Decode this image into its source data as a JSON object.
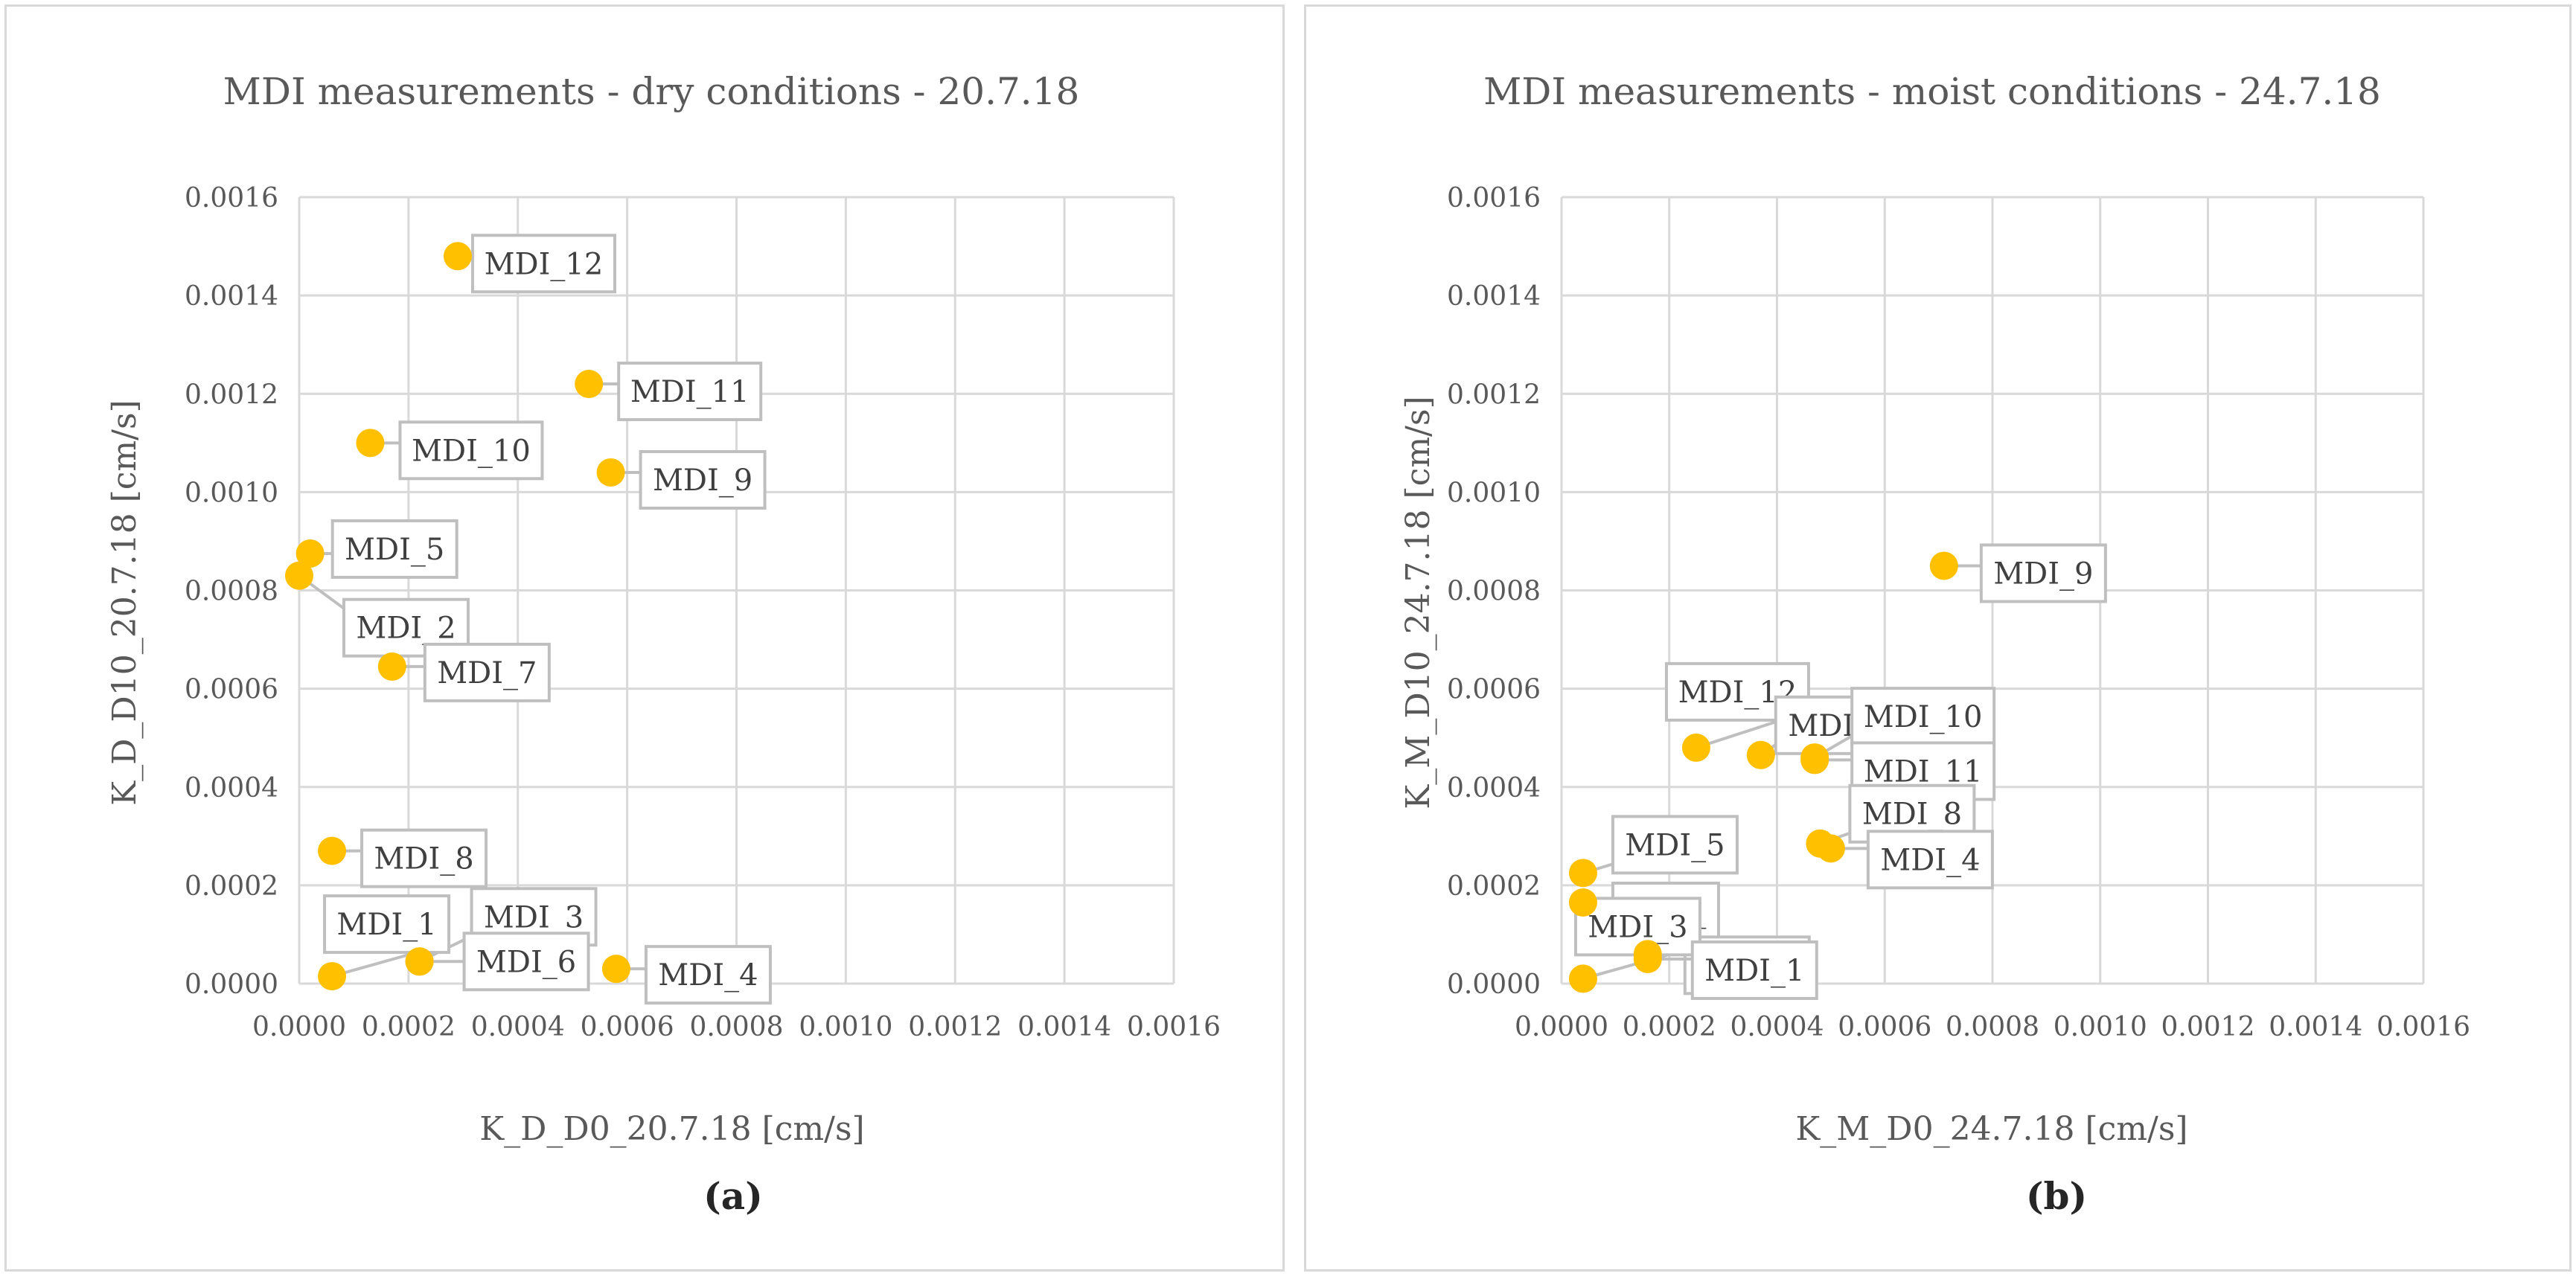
{
  "figure": {
    "captions": [
      "(a)",
      "(b)"
    ]
  },
  "chart_data": [
    {
      "type": "scatter",
      "title": "MDI measurements - dry conditions - 20.7.18",
      "xlabel": "K_D_D0_20.7.18 [cm/s]",
      "ylabel": "K_D_D10_20.7.18 [cm/s]",
      "xlim": [
        0,
        0.0016
      ],
      "ylim": [
        0,
        0.0016
      ],
      "xticks": [
        "0.0000",
        "0.0002",
        "0.0004",
        "0.0006",
        "0.0008",
        "0.0010",
        "0.0012",
        "0.0014",
        "0.0016"
      ],
      "yticks": [
        "0.0000",
        "0.0002",
        "0.0004",
        "0.0006",
        "0.0008",
        "0.0010",
        "0.0012",
        "0.0014",
        "0.0016"
      ],
      "grid": true,
      "legend": "none",
      "marker_color": "#FFC000",
      "points": [
        {
          "label": "MDI_12",
          "x": 0.00029,
          "y": 0.00148
        },
        {
          "label": "MDI_11",
          "x": 0.00053,
          "y": 0.00122
        },
        {
          "label": "MDI_10",
          "x": 0.00013,
          "y": 0.0011
        },
        {
          "label": "MDI_9",
          "x": 0.00057,
          "y": 0.00104
        },
        {
          "label": "MDI_5",
          "x": 2e-05,
          "y": 0.000875
        },
        {
          "label": "MDI_2",
          "x": 0.0,
          "y": 0.00083
        },
        {
          "label": "MDI_7",
          "x": 0.00017,
          "y": 0.000645
        },
        {
          "label": "MDI_8",
          "x": 6e-05,
          "y": 0.00027
        },
        {
          "label": "MDI_3",
          "x": 0.00022,
          "y": 4.5e-05
        },
        {
          "label": "MDI_1",
          "x": 6e-05,
          "y": 1.5e-05
        },
        {
          "label": "MDI_6",
          "x": 0.00022,
          "y": 4.5e-05
        },
        {
          "label": "MDI_4",
          "x": 0.00058,
          "y": 3e-05
        }
      ]
    },
    {
      "type": "scatter",
      "title": "MDI measurements - moist conditions - 24.7.18",
      "xlabel": "K_M_D0_24.7.18 [cm/s]",
      "ylabel": "K_M_D10_24.7.18 [cm/s]",
      "xlim": [
        0,
        0.0016
      ],
      "ylim": [
        0,
        0.0016
      ],
      "xticks": [
        "0.0000",
        "0.0002",
        "0.0004",
        "0.0006",
        "0.0008",
        "0.0010",
        "0.0012",
        "0.0014",
        "0.0016"
      ],
      "yticks": [
        "0.0000",
        "0.0002",
        "0.0004",
        "0.0006",
        "0.0008",
        "0.0010",
        "0.0012",
        "0.0014",
        "0.0016"
      ],
      "grid": true,
      "legend": "none",
      "marker_color": "#FFC000",
      "points": [
        {
          "label": "MDI_9",
          "x": 0.00071,
          "y": 0.00085
        },
        {
          "label": "MDI_12",
          "x": 0.00025,
          "y": 0.00048
        },
        {
          "label": "MDI_",
          "x": 0.00037,
          "y": 0.000465
        },
        {
          "label": "MDI_10",
          "x": 0.00047,
          "y": 0.00046
        },
        {
          "label": "MDI_11",
          "x": 0.00047,
          "y": 0.000455
        },
        {
          "label": "MDI_8",
          "x": 0.00048,
          "y": 0.000285
        },
        {
          "label": "MDI_4",
          "x": 0.0005,
          "y": 0.000275
        },
        {
          "label": "MDI_5",
          "x": 4e-05,
          "y": 0.000225
        },
        {
          "label": "MDI_",
          "x": 4e-05,
          "y": 0.000165
        },
        {
          "label": "MDI_6",
          "x": 0.00016,
          "y": 6e-05
        },
        {
          "label": "MDI_3",
          "x": 4e-05,
          "y": 1e-05
        },
        {
          "label": "MDI_1",
          "x": 0.00016,
          "y": 5e-05
        }
      ]
    }
  ]
}
